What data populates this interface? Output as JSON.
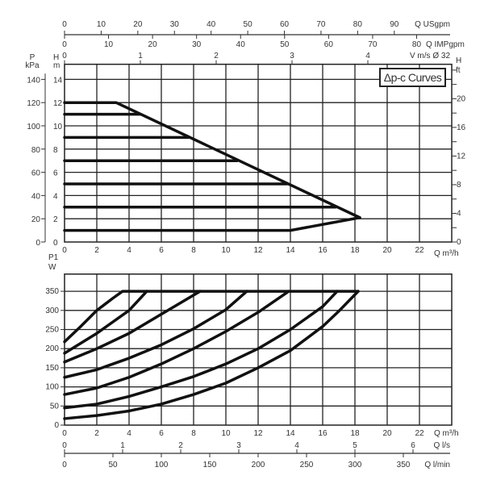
{
  "legend_box": "Δp-c Curves",
  "top_axes": {
    "usgpm": {
      "label": "Q USgpm",
      "ticks": [
        0,
        10,
        20,
        30,
        40,
        50,
        60,
        70,
        80,
        90
      ]
    },
    "impgpm": {
      "label": "Q IMPgpm",
      "ticks": [
        0,
        10,
        20,
        30,
        40,
        50,
        60,
        70,
        80
      ]
    },
    "velocity": {
      "label": "V m/s Ø 32",
      "ticks": [
        0,
        1,
        2,
        3,
        4
      ]
    }
  },
  "bottom_axes": {
    "ls": {
      "label": "Q l/s",
      "ticks": [
        0,
        1,
        2,
        3,
        4,
        5,
        6
      ]
    },
    "lmin": {
      "label": "Q l/min",
      "ticks": [
        0,
        50,
        100,
        150,
        200,
        250,
        300,
        350
      ]
    }
  },
  "chart_data": [
    {
      "type": "line",
      "title": "Δp-c Curves",
      "xlabel": "Q m³/h",
      "ylabel": "H m",
      "ylabel_left_outer": "P kPa",
      "ylabel_right": "H ft",
      "xlim": [
        0,
        24
      ],
      "ylim": [
        0,
        15.3
      ],
      "x_ticks": [
        0,
        2,
        4,
        6,
        8,
        10,
        12,
        14,
        16,
        18,
        20,
        22
      ],
      "y_ticks": [
        0,
        2,
        4,
        6,
        8,
        10,
        12,
        14
      ],
      "kpa_ticks": [
        0,
        20,
        40,
        60,
        80,
        100,
        120,
        140
      ],
      "ft_ticks": [
        0,
        4,
        8,
        12,
        16,
        20
      ],
      "grid": true,
      "series": [
        {
          "values": [
            [
              0,
              12
            ],
            [
              3.2,
              12
            ],
            [
              18.3,
              2.1
            ]
          ]
        },
        {
          "values": [
            [
              0,
              11
            ],
            [
              4.7,
              11
            ]
          ]
        },
        {
          "values": [
            [
              0,
              9
            ],
            [
              7.7,
              9
            ]
          ]
        },
        {
          "values": [
            [
              0,
              7
            ],
            [
              10.7,
              7
            ]
          ]
        },
        {
          "values": [
            [
              0,
              5
            ],
            [
              13.8,
              5
            ]
          ]
        },
        {
          "values": [
            [
              0,
              3
            ],
            [
              16.8,
              3
            ]
          ]
        },
        {
          "values": [
            [
              0,
              1
            ],
            [
              14,
              1
            ],
            [
              18.3,
              2.1
            ]
          ]
        }
      ]
    },
    {
      "type": "line",
      "xlabel": "Q m³/h",
      "ylabel": "P1 W",
      "xlim": [
        0,
        24
      ],
      "ylim": [
        0,
        395
      ],
      "x_ticks": [
        0,
        2,
        4,
        6,
        8,
        10,
        12,
        14,
        16,
        18,
        20,
        22
      ],
      "y_ticks": [
        0,
        50,
        100,
        150,
        200,
        250,
        300,
        350
      ],
      "grid": true,
      "series": [
        {
          "values": [
            [
              0,
              218
            ],
            [
              1,
              258
            ],
            [
              2,
              300
            ],
            [
              3,
              332
            ],
            [
              3.6,
              350
            ],
            [
              18.2,
              350
            ]
          ]
        },
        {
          "values": [
            [
              0,
              188
            ],
            [
              2,
              240
            ],
            [
              4,
              300
            ],
            [
              5.1,
              350
            ]
          ]
        },
        {
          "values": [
            [
              0,
              165
            ],
            [
              2,
              200
            ],
            [
              4,
              240
            ],
            [
              6,
              290
            ],
            [
              8.4,
              350
            ]
          ]
        },
        {
          "values": [
            [
              0,
              125
            ],
            [
              2,
              145
            ],
            [
              4,
              175
            ],
            [
              6,
              210
            ],
            [
              8,
              252
            ],
            [
              10,
              302
            ],
            [
              11.3,
              350
            ]
          ]
        },
        {
          "values": [
            [
              0,
              80
            ],
            [
              2,
              97
            ],
            [
              4,
              125
            ],
            [
              6,
              160
            ],
            [
              8,
              200
            ],
            [
              10,
              245
            ],
            [
              12,
              295
            ],
            [
              13.9,
              350
            ]
          ]
        },
        {
          "values": [
            [
              0,
              45
            ],
            [
              2,
              55
            ],
            [
              4,
              75
            ],
            [
              6,
              100
            ],
            [
              8,
              127
            ],
            [
              10,
              160
            ],
            [
              12,
              200
            ],
            [
              14,
              250
            ],
            [
              16,
              310
            ],
            [
              16.9,
              350
            ]
          ]
        },
        {
          "values": [
            [
              0,
              17
            ],
            [
              2,
              25
            ],
            [
              4,
              37
            ],
            [
              6,
              55
            ],
            [
              8,
              80
            ],
            [
              10,
              110
            ],
            [
              12,
              150
            ],
            [
              14,
              195
            ],
            [
              16,
              258
            ],
            [
              17,
              298
            ],
            [
              18.2,
              350
            ]
          ]
        }
      ]
    }
  ]
}
